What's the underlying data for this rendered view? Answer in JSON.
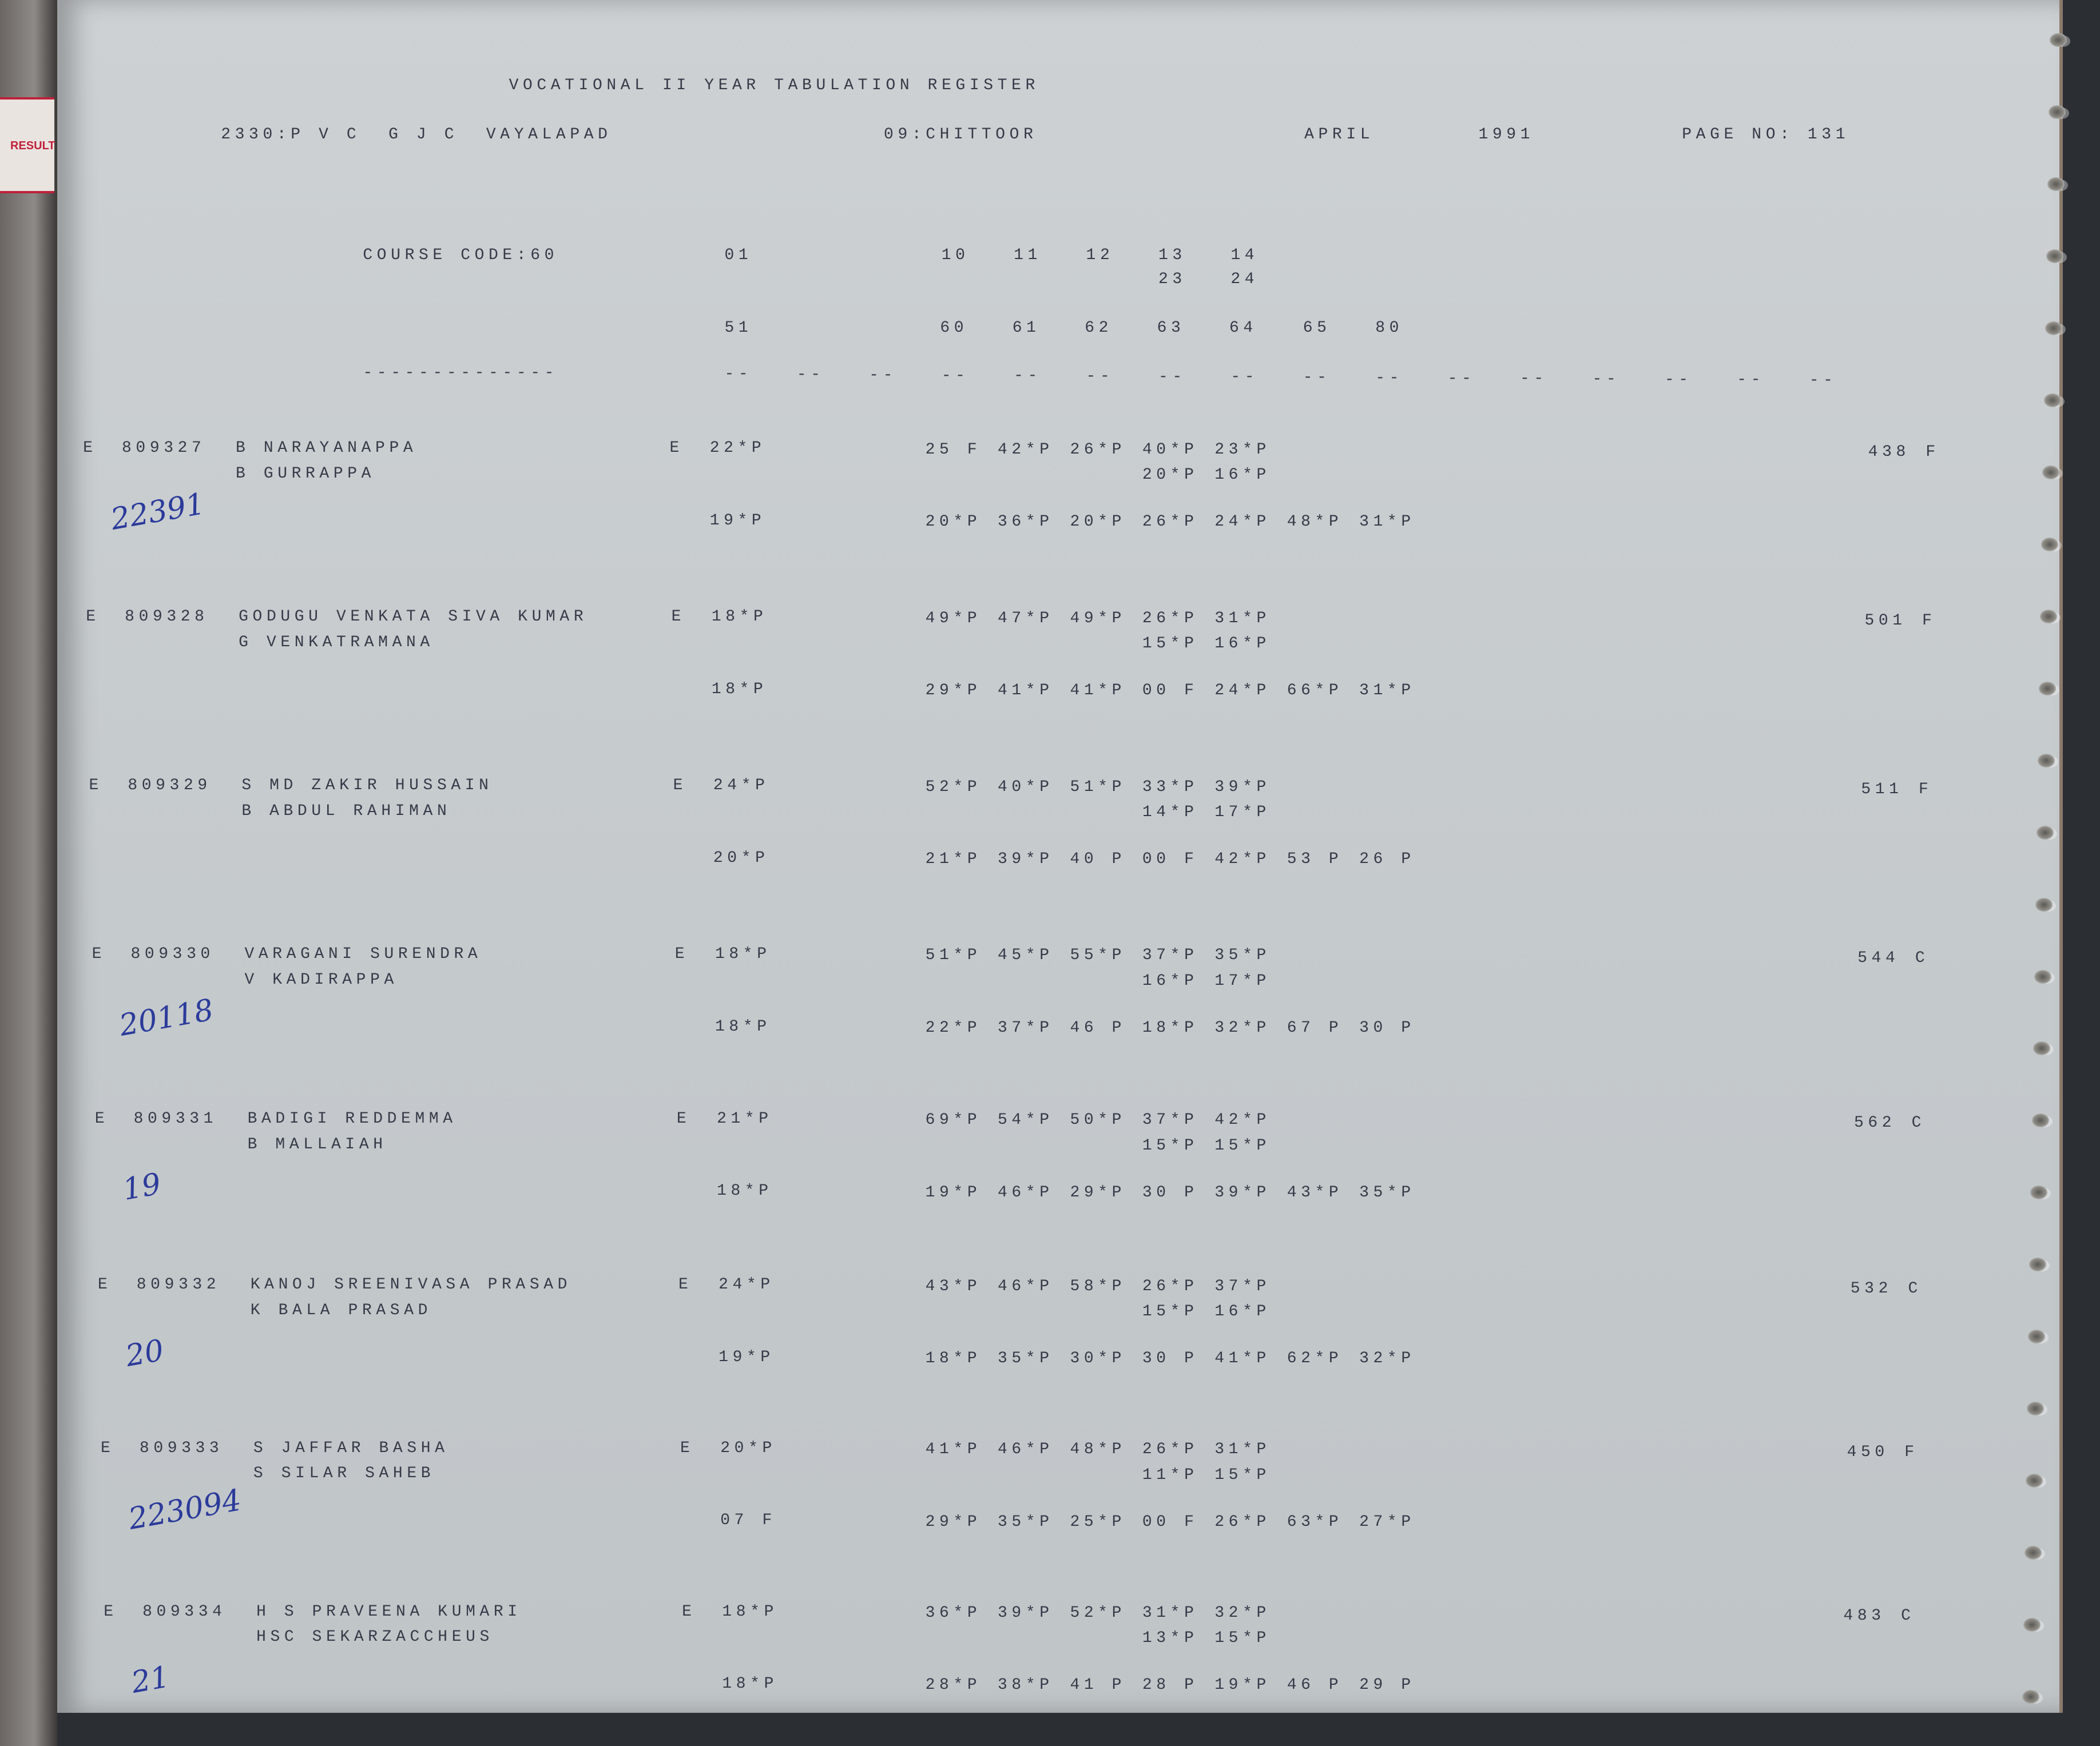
{
  "binder_tab": "RESULT",
  "header": {
    "title": "VOCATIONAL II YEAR TABULATION REGISTER",
    "college": "2330:P V C  G J C  VAYALAPAD",
    "district": "09:CHITTOOR",
    "month": "APRIL",
    "year": "1991",
    "page_no": "PAGE NO: 131"
  },
  "subject_header": {
    "course_code": "COURSE CODE:60",
    "row1": [
      "01",
      "10",
      "11",
      "12",
      "13",
      "14"
    ],
    "row2": [
      "23",
      "24"
    ],
    "row3": [
      "51",
      "60",
      "61",
      "62",
      "63",
      "64",
      "65",
      "80"
    ],
    "underline": "--------------",
    "dash": "--"
  },
  "records": [
    {
      "flag": "E",
      "reg_no": "809327",
      "name": "B NARAYANAPPA",
      "guardian": "B GURRAPPA",
      "medium": "E",
      "part1": "22*P",
      "part2": "19*P",
      "marks1": [
        "25 F",
        "42*P",
        "26*P",
        "40*P",
        "23*P"
      ],
      "marks2": [
        "20*P",
        "16*P"
      ],
      "marks3": [
        "20*P",
        "36*P",
        "20*P",
        "26*P",
        "24*P",
        "48*P",
        "31*P"
      ],
      "total": "438",
      "result": "F",
      "note": "22391"
    },
    {
      "flag": "E",
      "reg_no": "809328",
      "name": "GODUGU VENKATA SIVA KUMAR",
      "guardian": "G VENKATRAMANA",
      "medium": "E",
      "part1": "18*P",
      "part2": "18*P",
      "marks1": [
        "49*P",
        "47*P",
        "49*P",
        "26*P",
        "31*P"
      ],
      "marks2": [
        "15*P",
        "16*P"
      ],
      "marks3": [
        "29*P",
        "41*P",
        "41*P",
        "00 F",
        "24*P",
        "66*P",
        "31*P"
      ],
      "total": "501",
      "result": "F",
      "note": ""
    },
    {
      "flag": "E",
      "reg_no": "809329",
      "name": "S MD ZAKIR HUSSAIN",
      "guardian": "B ABDUL RAHIMAN",
      "medium": "E",
      "part1": "24*P",
      "part2": "20*P",
      "marks1": [
        "52*P",
        "40*P",
        "51*P",
        "33*P",
        "39*P"
      ],
      "marks2": [
        "14*P",
        "17*P"
      ],
      "marks3": [
        "21*P",
        "39*P",
        "40 P",
        "00 F",
        "42*P",
        "53 P",
        "26 P"
      ],
      "total": "511",
      "result": "F",
      "note": ""
    },
    {
      "flag": "E",
      "reg_no": "809330",
      "name": "VARAGANI SURENDRA",
      "guardian": "V KADIRAPPA",
      "medium": "E",
      "part1": "18*P",
      "part2": "18*P",
      "marks1": [
        "51*P",
        "45*P",
        "55*P",
        "37*P",
        "35*P"
      ],
      "marks2": [
        "16*P",
        "17*P"
      ],
      "marks3": [
        "22*P",
        "37*P",
        "46 P",
        "18*P",
        "32*P",
        "67 P",
        "30 P"
      ],
      "total": "544",
      "result": "C",
      "note": "20118"
    },
    {
      "flag": "E",
      "reg_no": "809331",
      "name": "BADIGI REDDEMMA",
      "guardian": "B MALLAIAH",
      "medium": "E",
      "part1": "21*P",
      "part2": "18*P",
      "marks1": [
        "69*P",
        "54*P",
        "50*P",
        "37*P",
        "42*P"
      ],
      "marks2": [
        "15*P",
        "15*P"
      ],
      "marks3": [
        "19*P",
        "46*P",
        "29*P",
        "30 P",
        "39*P",
        "43*P",
        "35*P"
      ],
      "total": "562",
      "result": "C",
      "note": "19"
    },
    {
      "flag": "E",
      "reg_no": "809332",
      "name": "KANOJ SREENIVASA PRASAD",
      "guardian": "K BALA PRASAD",
      "medium": "E",
      "part1": "24*P",
      "part2": "19*P",
      "marks1": [
        "43*P",
        "46*P",
        "58*P",
        "26*P",
        "37*P"
      ],
      "marks2": [
        "15*P",
        "16*P"
      ],
      "marks3": [
        "18*P",
        "35*P",
        "30*P",
        "30 P",
        "41*P",
        "62*P",
        "32*P"
      ],
      "total": "532",
      "result": "C",
      "note": "20"
    },
    {
      "flag": "E",
      "reg_no": "809333",
      "name": "S JAFFAR BASHA",
      "guardian": "S SILAR SAHEB",
      "medium": "E",
      "part1": "20*P",
      "part2": "07 F",
      "marks1": [
        "41*P",
        "46*P",
        "48*P",
        "26*P",
        "31*P"
      ],
      "marks2": [
        "11*P",
        "15*P"
      ],
      "marks3": [
        "29*P",
        "35*P",
        "25*P",
        "00 F",
        "26*P",
        "63*P",
        "27*P"
      ],
      "total": "450",
      "result": "F",
      "note": "223094"
    },
    {
      "flag": "E",
      "reg_no": "809334",
      "name": "H S PRAVEENA KUMARI",
      "guardian": "HSC SEKARZACCHEUS",
      "medium": "E",
      "part1": "18*P",
      "part2": "18*P",
      "marks1": [
        "36*P",
        "39*P",
        "52*P",
        "31*P",
        "32*P"
      ],
      "marks2": [
        "13*P",
        "15*P"
      ],
      "marks3": [
        "28*P",
        "38*P",
        "41 P",
        "28 P",
        "19*P",
        "46 P",
        "29 P"
      ],
      "total": "483",
      "result": "C",
      "note": "21"
    }
  ]
}
